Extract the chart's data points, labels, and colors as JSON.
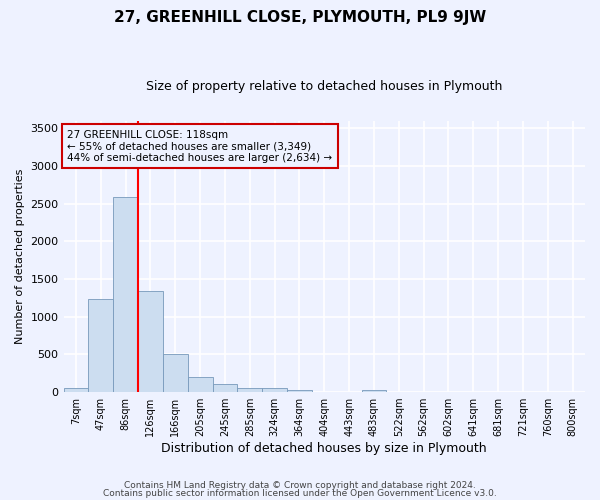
{
  "title": "27, GREENHILL CLOSE, PLYMOUTH, PL9 9JW",
  "subtitle": "Size of property relative to detached houses in Plymouth",
  "xlabel": "Distribution of detached houses by size in Plymouth",
  "ylabel": "Number of detached properties",
  "bin_labels": [
    "7sqm",
    "47sqm",
    "86sqm",
    "126sqm",
    "166sqm",
    "205sqm",
    "245sqm",
    "285sqm",
    "324sqm",
    "364sqm",
    "404sqm",
    "443sqm",
    "483sqm",
    "522sqm",
    "562sqm",
    "602sqm",
    "641sqm",
    "681sqm",
    "721sqm",
    "760sqm",
    "800sqm"
  ],
  "bar_heights": [
    55,
    1230,
    2580,
    1340,
    500,
    195,
    105,
    50,
    50,
    30,
    5,
    0,
    30,
    0,
    0,
    0,
    0,
    0,
    0,
    0,
    0
  ],
  "bar_color": "#ccddf0",
  "bar_edge_color": "#7799bb",
  "red_line_x": 3,
  "annotation_text": "27 GREENHILL CLOSE: 118sqm\n← 55% of detached houses are smaller (3,349)\n44% of semi-detached houses are larger (2,634) →",
  "annotation_box_color": "#cc0000",
  "ylim": [
    0,
    3600
  ],
  "yticks": [
    0,
    500,
    1000,
    1500,
    2000,
    2500,
    3000,
    3500
  ],
  "footer_line1": "Contains HM Land Registry data © Crown copyright and database right 2024.",
  "footer_line2": "Contains public sector information licensed under the Open Government Licence v3.0.",
  "background_color": "#eef2ff",
  "grid_color": "#ffffff"
}
